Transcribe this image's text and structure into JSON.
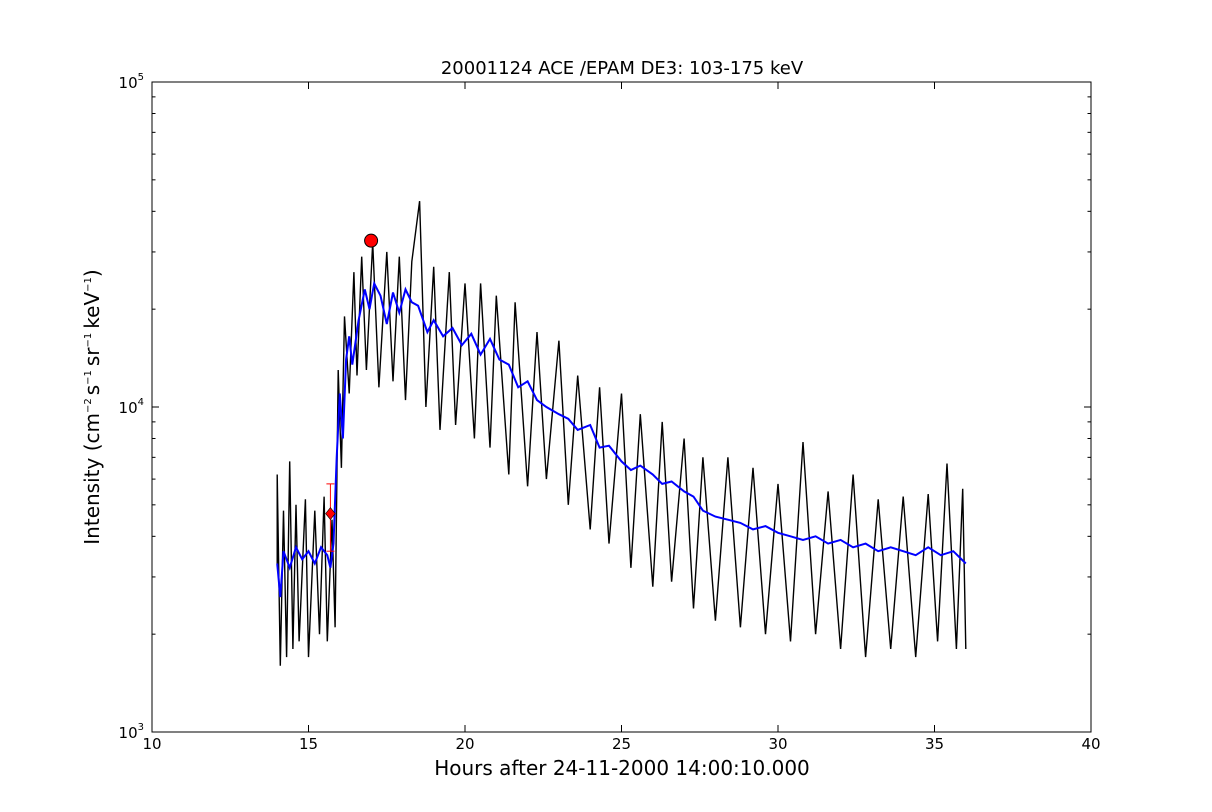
{
  "chart_data": {
    "type": "line",
    "title": "20001124 ACE /EPAM DE3: 103-175 keV",
    "xlabel": "Hours after 24-11-2000 14:00:10.000",
    "ylabel": {
      "prefix": "Intensity (cm",
      "exp1": "−2",
      "mid1": "s",
      "exp2": "−1",
      "mid2": "sr",
      "exp3": "−1",
      "mid3": "keV",
      "exp4": "−1",
      "suffix": ")"
    },
    "xlim": [
      10,
      40
    ],
    "ylim": [
      1000,
      100000
    ],
    "yscale": "log",
    "grid": false,
    "x_ticks": [
      {
        "value": 10,
        "label": "10"
      },
      {
        "value": 15,
        "label": "15"
      },
      {
        "value": 20,
        "label": "20"
      },
      {
        "value": 25,
        "label": "25"
      },
      {
        "value": 30,
        "label": "30"
      },
      {
        "value": 35,
        "label": "35"
      },
      {
        "value": 40,
        "label": "40"
      }
    ],
    "y_ticks": [
      {
        "value": 1000,
        "base": "10",
        "exp": "3"
      },
      {
        "value": 10000,
        "base": "10",
        "exp": "4"
      },
      {
        "value": 100000,
        "base": "10",
        "exp": "5"
      }
    ],
    "series": [
      {
        "role": "raw",
        "color": "#000000",
        "points": [
          [
            14.0,
            3300
          ],
          [
            14.0,
            6200
          ],
          [
            14.1,
            1600
          ],
          [
            14.2,
            4800
          ],
          [
            14.3,
            1700
          ],
          [
            14.4,
            6800
          ],
          [
            14.5,
            1800
          ],
          [
            14.6,
            5000
          ],
          [
            14.7,
            1900
          ],
          [
            14.9,
            5200
          ],
          [
            15.0,
            1700
          ],
          [
            15.2,
            4800
          ],
          [
            15.35,
            2000
          ],
          [
            15.5,
            5300
          ],
          [
            15.6,
            1900
          ],
          [
            15.75,
            4500
          ],
          [
            15.85,
            2100
          ],
          [
            15.95,
            13000
          ],
          [
            16.05,
            6500
          ],
          [
            16.15,
            19000
          ],
          [
            16.3,
            11000
          ],
          [
            16.45,
            26000
          ],
          [
            16.55,
            12500
          ],
          [
            16.7,
            29000
          ],
          [
            16.85,
            13000
          ],
          [
            17.05,
            32000
          ],
          [
            17.25,
            11500
          ],
          [
            17.5,
            30000
          ],
          [
            17.7,
            12000
          ],
          [
            17.9,
            29000
          ],
          [
            18.1,
            10500
          ],
          [
            18.3,
            28000
          ],
          [
            18.55,
            43000
          ],
          [
            18.75,
            10000
          ],
          [
            19.0,
            27000
          ],
          [
            19.2,
            8500
          ],
          [
            19.5,
            26000
          ],
          [
            19.7,
            8800
          ],
          [
            20.0,
            24000
          ],
          [
            20.3,
            8000
          ],
          [
            20.5,
            24000
          ],
          [
            20.8,
            7500
          ],
          [
            21.0,
            22000
          ],
          [
            21.4,
            6200
          ],
          [
            21.6,
            21000
          ],
          [
            22.0,
            5700
          ],
          [
            22.3,
            17000
          ],
          [
            22.6,
            6000
          ],
          [
            23.0,
            16000
          ],
          [
            23.3,
            5000
          ],
          [
            23.6,
            12500
          ],
          [
            24.0,
            4200
          ],
          [
            24.3,
            11500
          ],
          [
            24.6,
            3800
          ],
          [
            25.0,
            11000
          ],
          [
            25.3,
            3200
          ],
          [
            25.6,
            9500
          ],
          [
            26.0,
            2800
          ],
          [
            26.3,
            9000
          ],
          [
            26.6,
            2900
          ],
          [
            27.0,
            8000
          ],
          [
            27.3,
            2400
          ],
          [
            27.6,
            7000
          ],
          [
            28.0,
            2200
          ],
          [
            28.4,
            7000
          ],
          [
            28.8,
            2100
          ],
          [
            29.2,
            6500
          ],
          [
            29.6,
            2000
          ],
          [
            30.0,
            5800
          ],
          [
            30.4,
            1900
          ],
          [
            30.8,
            7800
          ],
          [
            31.2,
            2000
          ],
          [
            31.6,
            5500
          ],
          [
            32.0,
            1800
          ],
          [
            32.4,
            6200
          ],
          [
            32.8,
            1700
          ],
          [
            33.2,
            5200
          ],
          [
            33.6,
            1800
          ],
          [
            34.0,
            5300
          ],
          [
            34.4,
            1700
          ],
          [
            34.8,
            5400
          ],
          [
            35.1,
            1900
          ],
          [
            35.4,
            6700
          ],
          [
            35.7,
            1800
          ],
          [
            35.9,
            5600
          ],
          [
            36.0,
            1800
          ]
        ]
      },
      {
        "role": "smoothed",
        "color": "#0000ff",
        "points": [
          [
            14.0,
            3300
          ],
          [
            14.1,
            2600
          ],
          [
            14.2,
            3600
          ],
          [
            14.4,
            3200
          ],
          [
            14.6,
            3700
          ],
          [
            14.8,
            3400
          ],
          [
            15.0,
            3600
          ],
          [
            15.2,
            3300
          ],
          [
            15.4,
            3700
          ],
          [
            15.6,
            3500
          ],
          [
            15.7,
            3200
          ],
          [
            15.8,
            3800
          ],
          [
            15.9,
            7000
          ],
          [
            16.0,
            11000
          ],
          [
            16.1,
            8000
          ],
          [
            16.2,
            14000
          ],
          [
            16.3,
            16500
          ],
          [
            16.4,
            13500
          ],
          [
            16.6,
            18500
          ],
          [
            16.8,
            23000
          ],
          [
            16.95,
            20000
          ],
          [
            17.1,
            24000
          ],
          [
            17.3,
            22000
          ],
          [
            17.5,
            18000
          ],
          [
            17.7,
            22500
          ],
          [
            17.9,
            19500
          ],
          [
            18.1,
            23000
          ],
          [
            18.3,
            21000
          ],
          [
            18.5,
            20500
          ],
          [
            18.8,
            17000
          ],
          [
            19.0,
            18500
          ],
          [
            19.3,
            16500
          ],
          [
            19.6,
            17500
          ],
          [
            19.9,
            15500
          ],
          [
            20.2,
            16800
          ],
          [
            20.5,
            14500
          ],
          [
            20.8,
            16200
          ],
          [
            21.1,
            14000
          ],
          [
            21.4,
            13500
          ],
          [
            21.7,
            11500
          ],
          [
            22.0,
            12000
          ],
          [
            22.3,
            10500
          ],
          [
            22.6,
            10000
          ],
          [
            23.0,
            9500
          ],
          [
            23.3,
            9200
          ],
          [
            23.6,
            8500
          ],
          [
            24.0,
            8800
          ],
          [
            24.3,
            7500
          ],
          [
            24.6,
            7600
          ],
          [
            25.0,
            6800
          ],
          [
            25.3,
            6400
          ],
          [
            25.6,
            6600
          ],
          [
            26.0,
            6200
          ],
          [
            26.3,
            5800
          ],
          [
            26.6,
            5900
          ],
          [
            27.0,
            5500
          ],
          [
            27.3,
            5300
          ],
          [
            27.6,
            4800
          ],
          [
            28.0,
            4600
          ],
          [
            28.4,
            4500
          ],
          [
            28.8,
            4400
          ],
          [
            29.2,
            4200
          ],
          [
            29.6,
            4300
          ],
          [
            30.0,
            4100
          ],
          [
            30.4,
            4000
          ],
          [
            30.8,
            3900
          ],
          [
            31.2,
            4000
          ],
          [
            31.6,
            3800
          ],
          [
            32.0,
            3900
          ],
          [
            32.4,
            3700
          ],
          [
            32.8,
            3800
          ],
          [
            33.2,
            3600
          ],
          [
            33.6,
            3700
          ],
          [
            34.0,
            3600
          ],
          [
            34.4,
            3500
          ],
          [
            34.8,
            3700
          ],
          [
            35.2,
            3500
          ],
          [
            35.6,
            3600
          ],
          [
            36.0,
            3300
          ]
        ]
      }
    ],
    "markers": [
      {
        "shape": "circle",
        "color": "#ff0000",
        "x": 17.0,
        "y": 32500
      },
      {
        "shape": "diamond",
        "color": "#ff0000",
        "x": 15.7,
        "y": 4700
      }
    ],
    "error_bars": [
      {
        "color": "#ff0000",
        "x": 15.7,
        "y_low": 3600,
        "y_high": 5800
      }
    ]
  }
}
